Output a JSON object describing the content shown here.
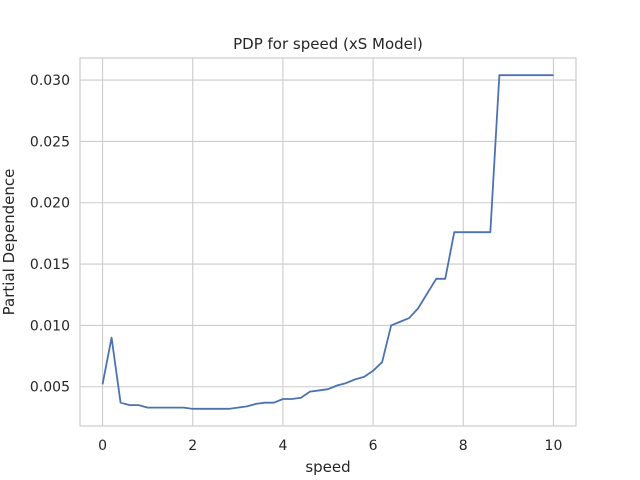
{
  "chart_data": {
    "type": "line",
    "title": "PDP for speed (xS Model)",
    "xlabel": "speed",
    "ylabel": "Partial Dependence",
    "xlim": [
      -0.5,
      10.5
    ],
    "ylim": [
      0.0018,
      0.0318
    ],
    "xticks": [
      0,
      2,
      4,
      6,
      8,
      10
    ],
    "yticks": [
      0.005,
      0.01,
      0.015,
      0.02,
      0.025,
      0.03
    ],
    "ytick_labels": [
      "0.005",
      "0.010",
      "0.015",
      "0.020",
      "0.025",
      "0.030"
    ],
    "grid": true,
    "series": [
      {
        "name": "",
        "color": "#4c72b0",
        "x": [
          0.0,
          0.2,
          0.4,
          0.6,
          0.8,
          1.0,
          1.2,
          1.4,
          1.6,
          1.8,
          2.0,
          2.2,
          2.4,
          2.6,
          2.8,
          3.0,
          3.2,
          3.4,
          3.6,
          3.8,
          4.0,
          4.2,
          4.4,
          4.6,
          4.8,
          5.0,
          5.2,
          5.4,
          5.6,
          5.8,
          6.0,
          6.2,
          6.4,
          6.6,
          6.8,
          7.0,
          7.2,
          7.4,
          7.6,
          7.8,
          8.0,
          8.2,
          8.4,
          8.6,
          8.8,
          9.0,
          9.2,
          9.4,
          9.6,
          9.8,
          10.0
        ],
        "y": [
          0.0052,
          0.009,
          0.0037,
          0.0035,
          0.0035,
          0.0033,
          0.0033,
          0.0033,
          0.0033,
          0.0033,
          0.0032,
          0.0032,
          0.0032,
          0.0032,
          0.0032,
          0.0033,
          0.0034,
          0.0036,
          0.0037,
          0.0037,
          0.004,
          0.004,
          0.0041,
          0.0046,
          0.0047,
          0.0048,
          0.0051,
          0.0053,
          0.0056,
          0.0058,
          0.0063,
          0.007,
          0.01,
          0.0103,
          0.0106,
          0.0114,
          0.0126,
          0.0138,
          0.0138,
          0.0176,
          0.0176,
          0.0176,
          0.0176,
          0.0176,
          0.0304,
          0.0304,
          0.0304,
          0.0304,
          0.0304,
          0.0304,
          0.0304
        ]
      }
    ]
  }
}
